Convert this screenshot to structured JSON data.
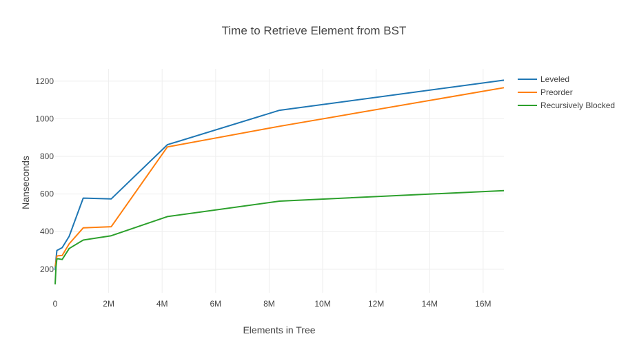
{
  "chart_data": {
    "type": "line",
    "title": "Time to Retrieve Element from BST",
    "xlabel": "Elements in Tree",
    "ylabel": "Nanseconds",
    "xlim": [
      0,
      16777216
    ],
    "ylim": [
      75,
      1265
    ],
    "x_ticks": [
      {
        "value": 0,
        "label": "0"
      },
      {
        "value": 2000000,
        "label": "2M"
      },
      {
        "value": 4000000,
        "label": "4M"
      },
      {
        "value": 6000000,
        "label": "6M"
      },
      {
        "value": 8000000,
        "label": "8M"
      },
      {
        "value": 10000000,
        "label": "10M"
      },
      {
        "value": 12000000,
        "label": "12M"
      },
      {
        "value": 14000000,
        "label": "14M"
      },
      {
        "value": 16000000,
        "label": "16M"
      }
    ],
    "y_ticks": [
      {
        "value": 200,
        "label": "200"
      },
      {
        "value": 400,
        "label": "400"
      },
      {
        "value": 600,
        "label": "600"
      },
      {
        "value": 800,
        "label": "800"
      },
      {
        "value": 1000,
        "label": "1000"
      },
      {
        "value": 1200,
        "label": "1200"
      }
    ],
    "grid": true,
    "legend_position": "right",
    "x": [
      1024,
      32768,
      65536,
      131072,
      262144,
      524288,
      1048576,
      2097152,
      4194304,
      8388608,
      16777216
    ],
    "series": [
      {
        "name": "Leveled",
        "color": "#1f77b4",
        "values": [
          195,
          255,
          300,
          305,
          315,
          375,
          578,
          574,
          862,
          1045,
          1205
        ]
      },
      {
        "name": "Preorder",
        "color": "#ff7f0e",
        "values": [
          215,
          240,
          270,
          272,
          273,
          335,
          420,
          426,
          850,
          960,
          1165
        ]
      },
      {
        "name": "Recursively Blocked",
        "color": "#2ca02c",
        "values": [
          120,
          215,
          255,
          255,
          252,
          310,
          355,
          378,
          480,
          562,
          618
        ]
      }
    ]
  }
}
